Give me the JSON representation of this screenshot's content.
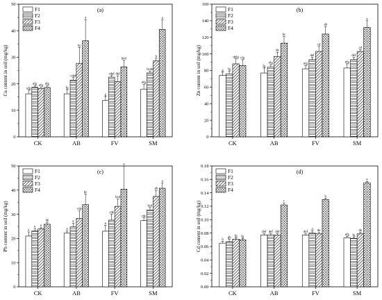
{
  "chart_data": [
    {
      "type": "bar",
      "panel": "(a)",
      "ylabel": "Cu content in soil (mg/kg)",
      "ylim": [
        0,
        50
      ],
      "yticks": [
        0,
        10,
        20,
        30,
        40,
        50
      ],
      "categories": [
        "CK",
        "AB",
        "FV",
        "SM"
      ],
      "legend": "top-left",
      "series": [
        {
          "name": "F1",
          "pattern": "empty",
          "values": [
            16.2,
            16.2,
            13.7,
            18.0
          ],
          "errors": [
            1.4,
            1.6,
            1.5,
            1.7
          ],
          "sig": [
            "efg",
            "fg",
            "g",
            "efg"
          ]
        },
        {
          "name": "F2",
          "pattern": "hline",
          "values": [
            18.7,
            21.4,
            22.5,
            24.1
          ],
          "errors": [
            0.5,
            0.9,
            0.6,
            0.7
          ],
          "sig": [
            "efg",
            "cdef",
            "cdef",
            "bcde"
          ]
        },
        {
          "name": "F3",
          "pattern": "diag",
          "values": [
            18.2,
            27.7,
            20.8,
            28.6
          ],
          "errors": [
            0.5,
            6.0,
            2.2,
            1.0
          ],
          "sig": [
            "efg",
            "bc",
            "def",
            "b"
          ]
        },
        {
          "name": "F4",
          "pattern": "cross",
          "values": [
            18.6,
            36.2,
            26.4,
            40.5
          ],
          "errors": [
            0.6,
            8.0,
            2.4,
            3.6
          ],
          "sig": [
            "efg",
            "a",
            "bcd",
            "a"
          ]
        }
      ]
    },
    {
      "type": "bar",
      "panel": "(b)",
      "ylabel": "Zn content in soil (mg/kg)",
      "ylim": [
        0,
        160
      ],
      "yticks": [
        0,
        20,
        40,
        60,
        80,
        100,
        120,
        140,
        160
      ],
      "categories": [
        "CK",
        "AB",
        "FV",
        "SM"
      ],
      "legend": "top-left",
      "series": [
        {
          "name": "F1",
          "pattern": "empty",
          "values": [
            74,
            77,
            82,
            83
          ],
          "errors": [
            4,
            6,
            4,
            5
          ],
          "sig": [
            "g",
            "fg",
            "efg",
            "efg"
          ]
        },
        {
          "name": "F2",
          "pattern": "hline",
          "values": [
            76,
            84,
            93,
            93
          ],
          "errors": [
            3,
            3,
            3,
            3
          ],
          "sig": [
            "fg",
            "efg",
            "def",
            "def"
          ]
        },
        {
          "name": "F3",
          "pattern": "diag",
          "values": [
            88,
            97,
            103,
            103
          ],
          "errors": [
            6,
            5,
            6,
            2
          ],
          "sig": [
            "defg",
            "de",
            "cd",
            "cd"
          ]
        },
        {
          "name": "F4",
          "pattern": "cross",
          "values": [
            86,
            113,
            124,
            132
          ],
          "errors": [
            7,
            8,
            9,
            8
          ],
          "sig": [
            "cfg",
            "bc",
            "ab",
            "a"
          ]
        }
      ]
    },
    {
      "type": "bar",
      "panel": "(c)",
      "ylabel": "Pb content in soil (mg/kg)",
      "ylim": [
        0,
        50
      ],
      "yticks": [
        0,
        10,
        20,
        30,
        40,
        50
      ],
      "categories": [
        "CK",
        "AB",
        "FV",
        "SM"
      ],
      "legend": "top-left",
      "series": [
        {
          "name": "F1",
          "pattern": "empty",
          "values": [
            21.0,
            22.2,
            23.0,
            27.4
          ],
          "errors": [
            1.7,
            1.0,
            2.5,
            1.1
          ],
          "sig": [
            "e",
            "e",
            "e",
            "cde"
          ]
        },
        {
          "name": "F2",
          "pattern": "hline",
          "values": [
            23.1,
            24.8,
            27.6,
            31.8
          ],
          "errors": [
            1.0,
            1.5,
            2.5,
            1.0
          ],
          "sig": [
            "e",
            "e",
            "cde",
            "bcd"
          ]
        },
        {
          "name": "F3",
          "pattern": "diag",
          "values": [
            24.0,
            28.3,
            33.3,
            37.4
          ],
          "errors": [
            0.5,
            3.1,
            3.0,
            2.5
          ],
          "sig": [
            "e",
            "cde",
            "bcd",
            "ab"
          ]
        },
        {
          "name": "F4",
          "pattern": "cross",
          "values": [
            25.9,
            34.0,
            40.4,
            40.8
          ],
          "errors": [
            0.8,
            4.4,
            9.6,
            2.1
          ],
          "sig": [
            "de",
            "bc",
            "a",
            "a"
          ]
        }
      ]
    },
    {
      "type": "bar",
      "panel": "(d)",
      "ylabel": "Cd content in soil (mg/kg)",
      "ylim": [
        0,
        0.18
      ],
      "yticks": [
        0,
        0.02,
        0.04,
        0.06,
        0.08,
        0.1,
        0.12,
        0.14,
        0.16,
        0.18
      ],
      "categories": [
        "CK",
        "AB",
        "FV",
        "SM"
      ],
      "legend": "top-left",
      "series": [
        {
          "name": "F1",
          "pattern": "empty",
          "values": [
            0.065,
            0.077,
            0.077,
            0.073
          ],
          "errors": [
            0.003,
            0.002,
            0.002,
            0.002
          ],
          "sig": [
            "h",
            "def",
            "def",
            "efg"
          ]
        },
        {
          "name": "F2",
          "pattern": "hline",
          "values": [
            0.067,
            0.077,
            0.08,
            0.072
          ],
          "errors": [
            0.004,
            0.002,
            0.003,
            0.002
          ],
          "sig": [
            "gh",
            "def",
            "d",
            "fg"
          ]
        },
        {
          "name": "F3",
          "pattern": "diag",
          "values": [
            0.071,
            0.077,
            0.079,
            0.079
          ],
          "errors": [
            0.002,
            0.002,
            0.002,
            0.002
          ],
          "sig": [
            "fg",
            "def",
            "de",
            "de"
          ]
        },
        {
          "name": "F4",
          "pattern": "cross",
          "values": [
            0.07,
            0.122,
            0.13,
            0.155
          ],
          "errors": [
            0.002,
            0.003,
            0.002,
            0.002
          ],
          "sig": [
            "fg",
            "c",
            "b",
            "a"
          ]
        }
      ]
    }
  ]
}
